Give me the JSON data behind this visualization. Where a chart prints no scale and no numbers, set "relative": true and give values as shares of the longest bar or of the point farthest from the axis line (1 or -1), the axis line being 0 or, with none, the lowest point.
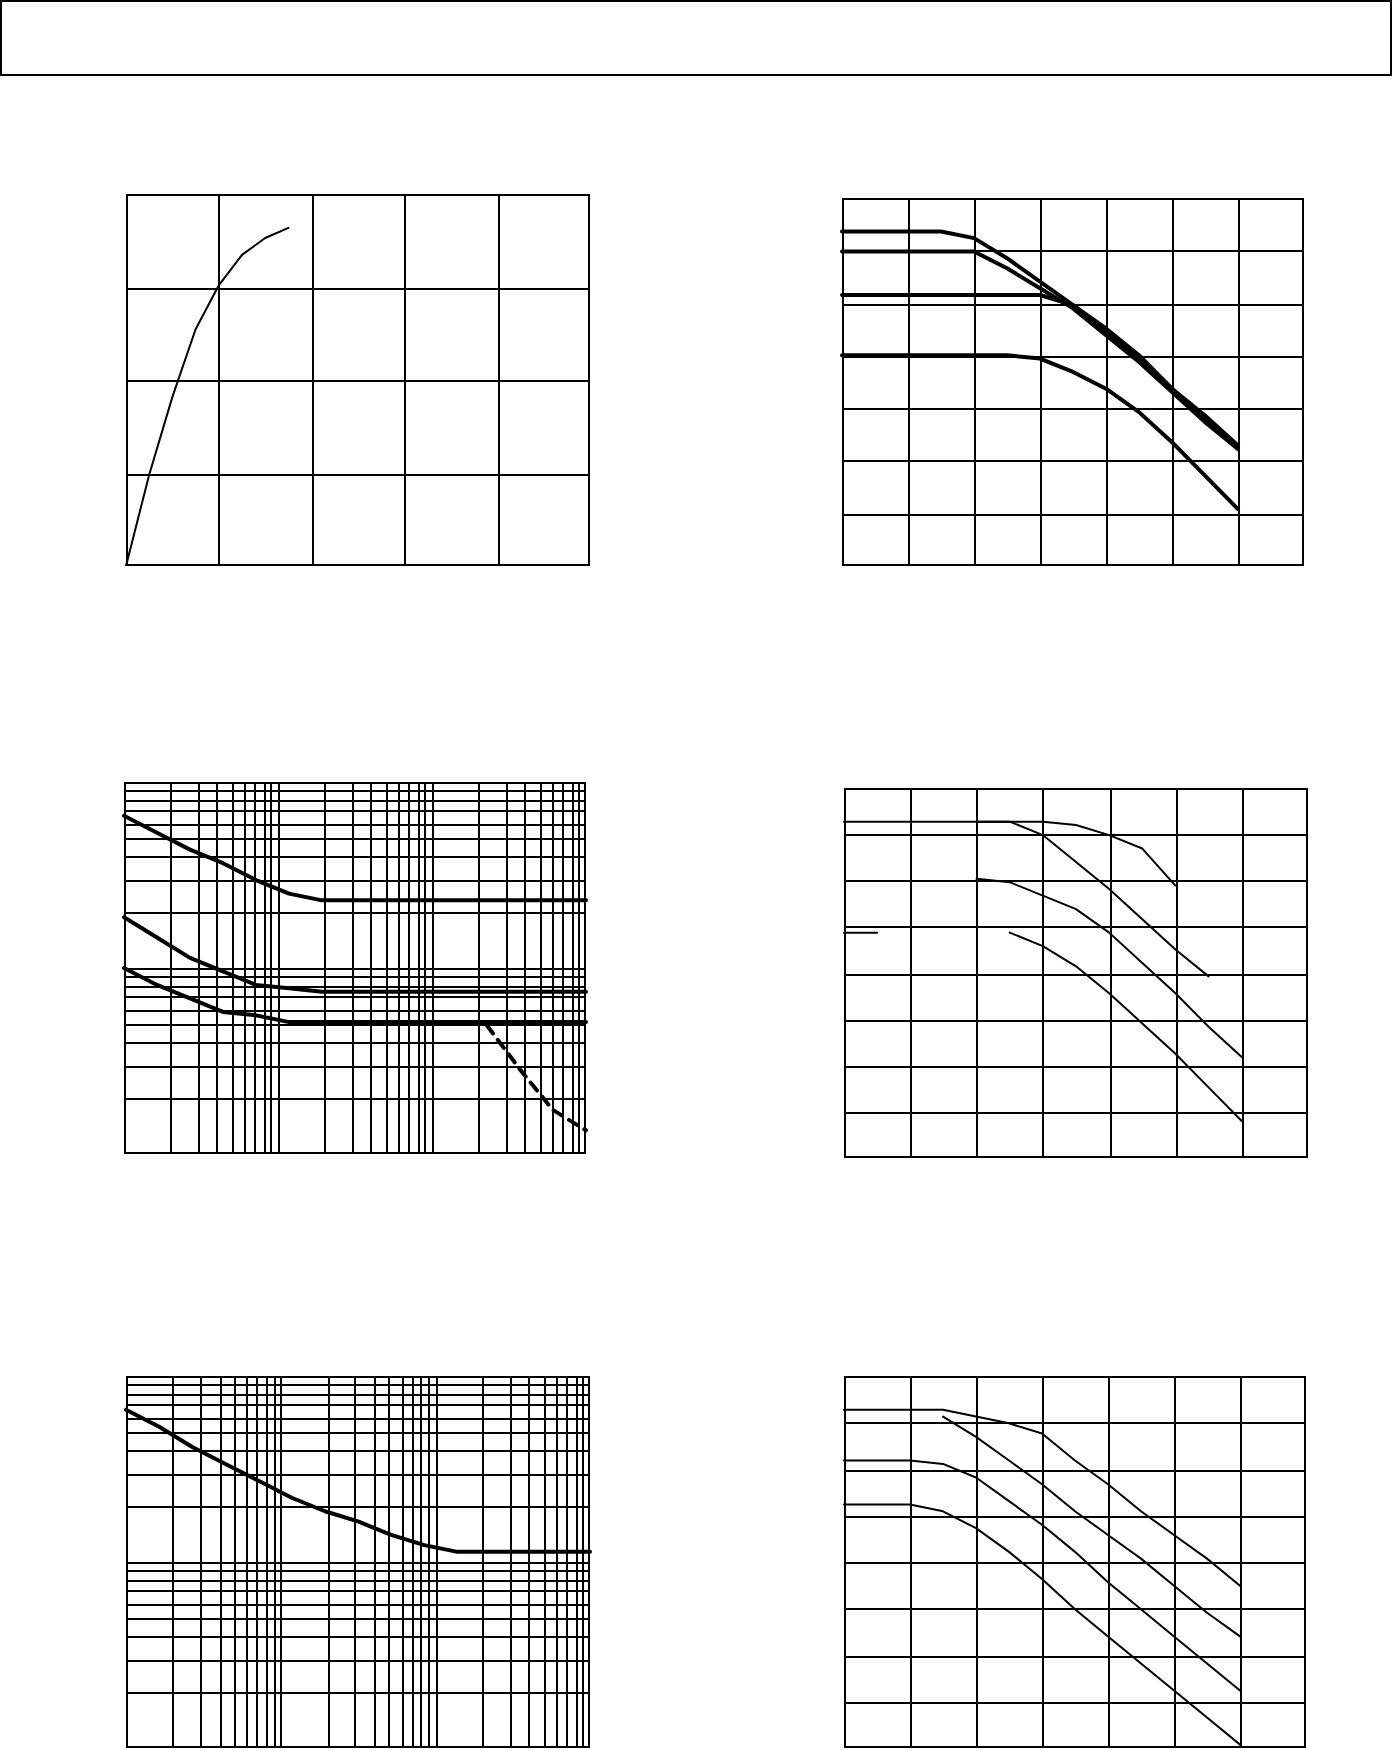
{
  "chart_data": [
    {
      "type": "line",
      "relative": true,
      "grid": true,
      "legend": false,
      "marker": "none",
      "line_style": "solid",
      "categories": [
        null,
        null,
        null,
        null,
        null,
        null,
        null,
        null,
        null,
        null,
        null,
        null,
        null,
        null,
        null,
        null,
        null,
        null,
        null,
        null,
        null
      ],
      "series": [
        {
          "color": "#000000",
          "values": [
            0,
            0.27,
            0.5,
            0.7,
            0.83,
            0.92,
            0.97,
            1,
            null,
            null,
            null,
            null,
            null,
            null,
            null,
            null,
            null,
            null,
            null,
            null,
            null
          ]
        }
      ]
    },
    {
      "type": "line",
      "relative": true,
      "grid": true,
      "legend": false,
      "marker": "none",
      "line_style": "solid",
      "categories": [
        null,
        null,
        null,
        null,
        null,
        null,
        null,
        null,
        null,
        null,
        null,
        null,
        null,
        null,
        null
      ],
      "series": [
        {
          "color": "#000000",
          "values": [
            1,
            1,
            1,
            1,
            0.98,
            0.92,
            0.85,
            0.78,
            0.7,
            0.62,
            0.53,
            0.45,
            0.36,
            null,
            null
          ]
        },
        {
          "color": "#000000",
          "values": [
            0.94,
            0.94,
            0.94,
            0.94,
            0.94,
            0.89,
            0.83,
            0.77,
            0.69,
            0.61,
            0.52,
            0.43,
            0.35,
            null,
            null
          ]
        },
        {
          "color": "#000000",
          "values": [
            0.81,
            0.81,
            0.81,
            0.81,
            0.81,
            0.81,
            0.81,
            0.78,
            0.71,
            0.63,
            0.53,
            0.44,
            0.35,
            null,
            null
          ]
        },
        {
          "color": "#000000",
          "values": [
            0.63,
            0.63,
            0.63,
            0.63,
            0.63,
            0.63,
            0.62,
            0.58,
            0.53,
            0.46,
            0.37,
            0.27,
            0.17,
            null,
            null
          ]
        }
      ]
    },
    {
      "type": "line",
      "relative": true,
      "grid": true,
      "legend": false,
      "marker": "none",
      "line_style": "solid",
      "categories": [
        null,
        null,
        null,
        null,
        null,
        null,
        null,
        null,
        null,
        null,
        null,
        null,
        null,
        null,
        null
      ],
      "series": [
        {
          "color": "#000000",
          "values": [
            1,
            0.95,
            0.9,
            0.86,
            0.81,
            0.77,
            0.75,
            0.75,
            0.75,
            0.75,
            0.75,
            0.75,
            0.75,
            0.75,
            0.75
          ]
        },
        {
          "color": "#000000",
          "values": [
            0.7,
            0.64,
            0.58,
            0.54,
            0.5,
            0.49,
            0.48,
            0.48,
            0.48,
            0.48,
            0.48,
            0.48,
            0.48,
            0.48,
            0.48
          ]
        },
        {
          "color": "#000000",
          "values": [
            0.55,
            0.5,
            0.46,
            0.42,
            0.41,
            0.39,
            0.39,
            0.39,
            0.39,
            0.39,
            0.39,
            0.39,
            0.39,
            0.39,
            0.39
          ]
        },
        {
          "color": "#000000",
          "line_style": "dashed",
          "values": [
            null,
            null,
            null,
            null,
            null,
            null,
            null,
            null,
            null,
            null,
            null,
            0.38,
            0.25,
            0.13,
            0.07
          ]
        }
      ]
    },
    {
      "type": "line",
      "relative": true,
      "grid": true,
      "legend": false,
      "marker": "none",
      "line_style": "solid",
      "categories": [
        null,
        null,
        null,
        null,
        null,
        null,
        null,
        null,
        null,
        null,
        null,
        null,
        null,
        null,
        null
      ],
      "series": [
        {
          "color": "#000000",
          "values": [
            1,
            1,
            1,
            1,
            1,
            1,
            1,
            0.99,
            0.96,
            0.92,
            0.81,
            null,
            null,
            null,
            null
          ]
        },
        {
          "color": "#000000",
          "values": [
            null,
            null,
            null,
            null,
            1,
            1,
            0.96,
            0.88,
            0.8,
            0.71,
            0.62,
            0.54,
            null,
            null,
            null
          ]
        },
        {
          "color": "#000000",
          "values": [
            null,
            null,
            null,
            null,
            0.83,
            0.82,
            0.78,
            0.74,
            0.67,
            0.58,
            0.49,
            0.39,
            0.3,
            null,
            null
          ]
        },
        {
          "color": "#000000",
          "values": [
            0.67,
            0.67,
            null,
            null,
            null,
            0.67,
            0.63,
            0.57,
            0.49,
            0.4,
            0.31,
            0.21,
            0.11,
            null,
            null
          ]
        }
      ]
    },
    {
      "type": "line",
      "relative": true,
      "grid": true,
      "legend": false,
      "marker": "none",
      "line_style": "solid",
      "categories": [
        null,
        null,
        null,
        null,
        null,
        null,
        null,
        null,
        null,
        null,
        null,
        null,
        null,
        null,
        null
      ],
      "series": [
        {
          "color": "#000000",
          "values": [
            1,
            0.95,
            0.89,
            0.84,
            0.79,
            0.74,
            0.7,
            0.67,
            0.63,
            0.6,
            0.58,
            0.58,
            0.58,
            0.58,
            0.58
          ]
        }
      ]
    },
    {
      "type": "line",
      "relative": true,
      "grid": true,
      "legend": false,
      "marker": "none",
      "line_style": "solid",
      "categories": [
        null,
        null,
        null,
        null,
        null,
        null,
        null,
        null,
        null,
        null,
        null,
        null,
        null,
        null,
        null
      ],
      "series": [
        {
          "color": "#000000",
          "values": [
            1,
            1,
            1,
            1,
            0.98,
            0.96,
            0.93,
            0.85,
            0.78,
            0.7,
            0.63,
            0.56,
            0.48,
            null,
            null
          ]
        },
        {
          "color": "#000000",
          "values": [
            null,
            null,
            null,
            0.98,
            0.92,
            0.85,
            0.78,
            0.7,
            0.63,
            0.56,
            0.48,
            0.4,
            0.33,
            null,
            null
          ]
        },
        {
          "color": "#000000",
          "values": [
            0.85,
            0.85,
            0.85,
            0.84,
            0.8,
            0.73,
            0.66,
            0.58,
            0.49,
            0.41,
            0.33,
            0.25,
            0.17,
            null,
            null
          ]
        },
        {
          "color": "#000000",
          "values": [
            0.72,
            0.72,
            0.72,
            0.7,
            0.65,
            0.58,
            0.5,
            0.41,
            0.33,
            0.25,
            0.17,
            0.09,
            0.01,
            null,
            null
          ]
        }
      ]
    }
  ]
}
